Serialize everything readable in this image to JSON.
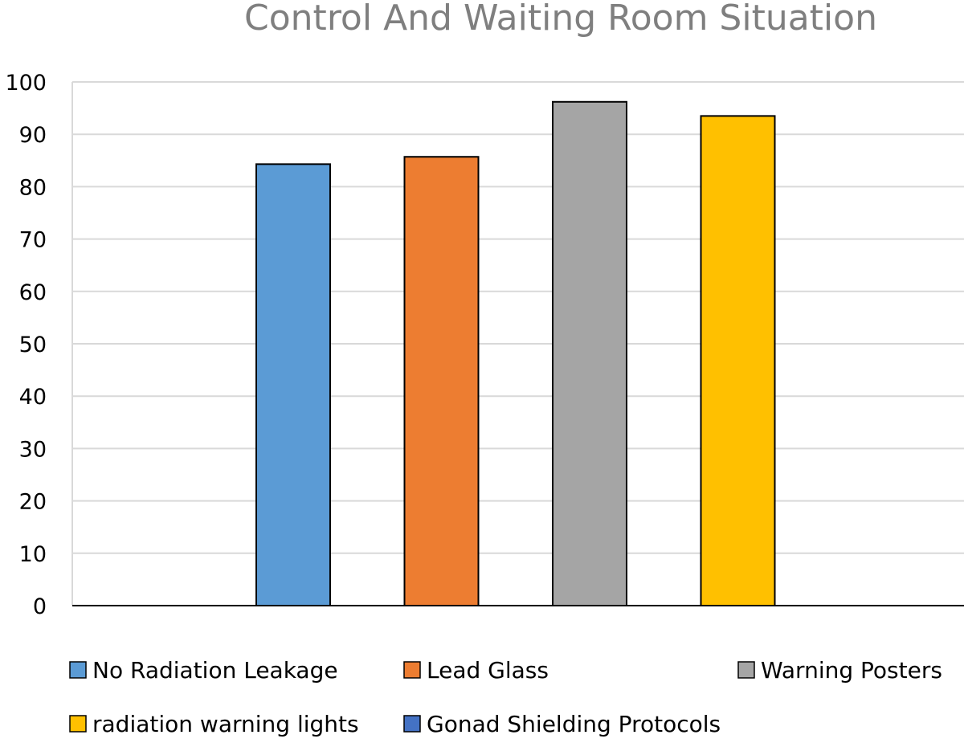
{
  "chart_data": {
    "type": "bar",
    "title": "Control And Waiting Room Situation",
    "xlabel": "",
    "ylabel": "",
    "ylim": [
      0,
      100
    ],
    "yticks": [
      0,
      10,
      20,
      30,
      40,
      50,
      60,
      70,
      80,
      90,
      100
    ],
    "grid": true,
    "legend_position": "bottom",
    "series": [
      {
        "name": "No Radiation Leakage",
        "value": 84.3,
        "color": "#5b9bd5"
      },
      {
        "name": "Lead Glass",
        "value": 85.7,
        "color": "#ed7d31"
      },
      {
        "name": "Warning Posters",
        "value": 96.2,
        "color": "#a5a5a5"
      },
      {
        "name": "radiation warning lights",
        "value": 93.5,
        "color": "#ffc000"
      },
      {
        "name": "Gonad Shielding Protocols",
        "value": 0,
        "color": "#4472c4"
      }
    ]
  }
}
